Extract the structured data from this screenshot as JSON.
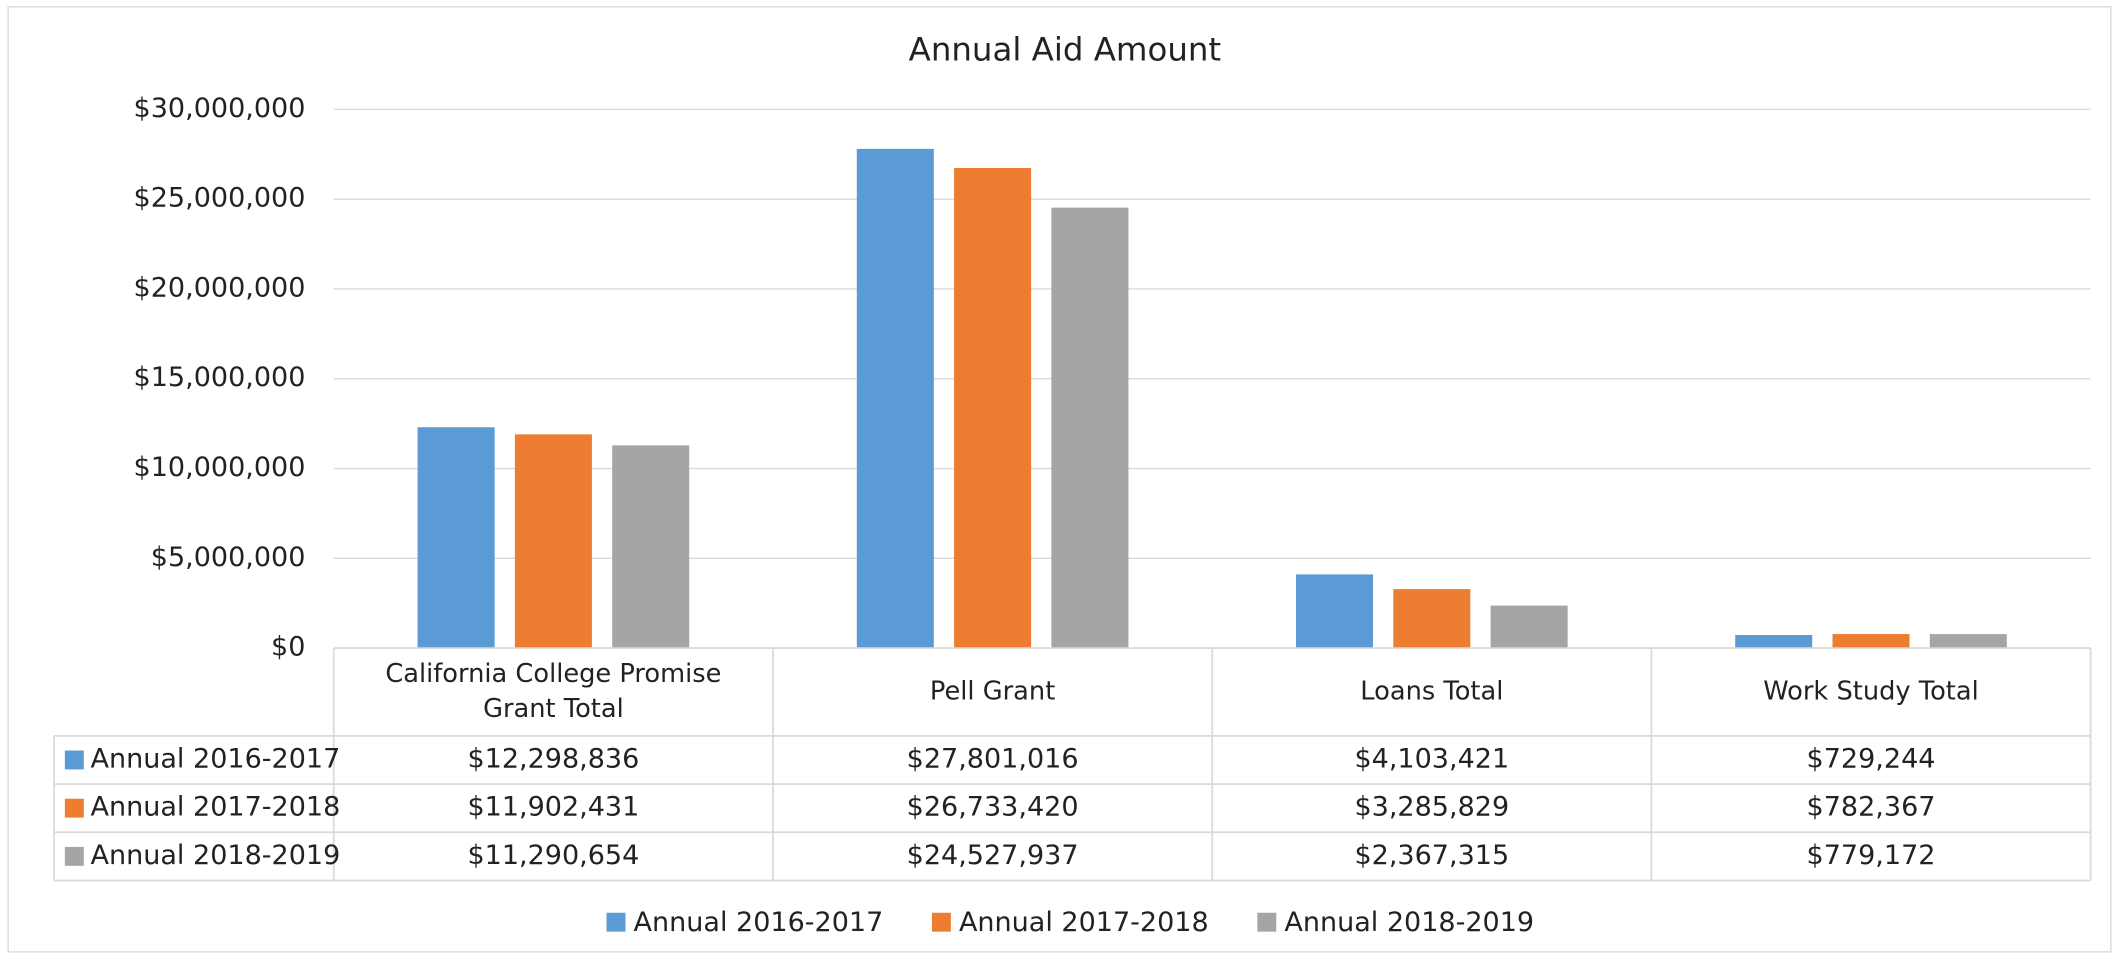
{
  "chart_data": {
    "type": "bar",
    "title": "Annual Aid Amount",
    "categories": [
      "California College Promise Grant Total",
      "Pell Grant",
      "Loans Total",
      "Work Study Total"
    ],
    "series": [
      {
        "name": "Annual 2016-2017",
        "color": "#5b9bd5",
        "values": [
          12298836,
          27801016,
          4103421,
          729244
        ],
        "value_labels": [
          "$12,298,836",
          "$27,801,016",
          "$4,103,421",
          "$729,244"
        ]
      },
      {
        "name": "Annual 2017-2018",
        "color": "#ed7d31",
        "values": [
          11902431,
          26733420,
          3285829,
          782367
        ],
        "value_labels": [
          "$11,902,431",
          "$26,733,420",
          "$3,285,829",
          "$782,367"
        ]
      },
      {
        "name": "Annual 2018-2019",
        "color": "#a5a5a5",
        "values": [
          11290654,
          24527937,
          2367315,
          779172
        ],
        "value_labels": [
          "$11,290,654",
          "$24,527,937",
          "$2,367,315",
          "$779,172"
        ]
      }
    ],
    "ylim": [
      0,
      30000000
    ],
    "yticks": [
      {
        "value": 0,
        "label": "$0"
      },
      {
        "value": 5000000,
        "label": "$5,000,000"
      },
      {
        "value": 10000000,
        "label": "$10,000,000"
      },
      {
        "value": 15000000,
        "label": "$15,000,000"
      },
      {
        "value": 20000000,
        "label": "$20,000,000"
      },
      {
        "value": 25000000,
        "label": "$25,000,000"
      },
      {
        "value": 30000000,
        "label": "$30,000,000"
      }
    ],
    "grid": true,
    "legend": "bottom"
  }
}
